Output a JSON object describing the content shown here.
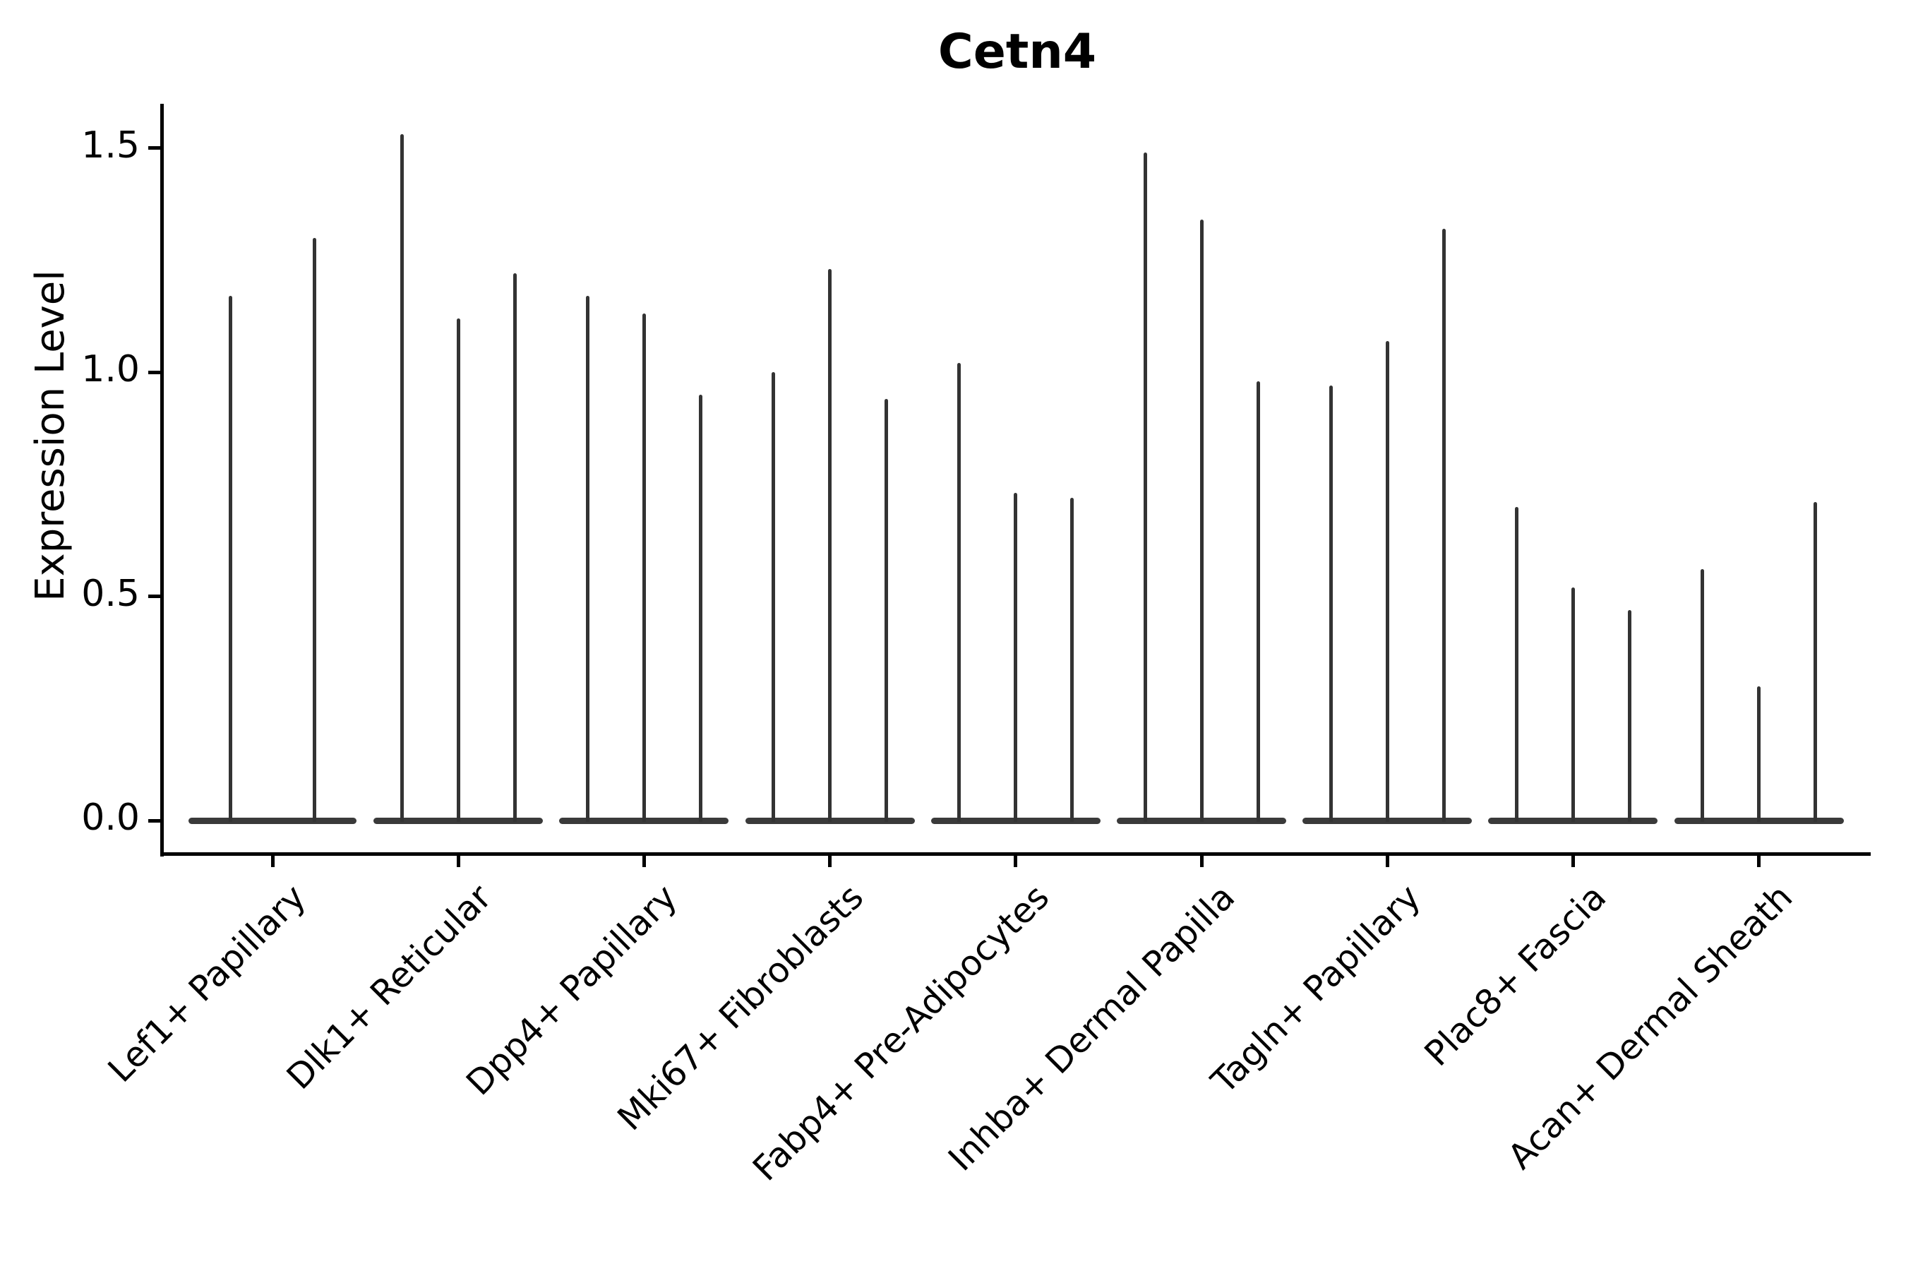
{
  "chart_data": {
    "type": "violin",
    "title": "Cetn4",
    "ylabel": "Expression Level",
    "xlabel": "",
    "ylim": [
      0,
      1.6
    ],
    "yticks": [
      0.0,
      0.5,
      1.0,
      1.5
    ],
    "ytick_labels": [
      "0.0",
      "0.5",
      "1.0",
      "1.5"
    ],
    "grid": false,
    "legend": "none",
    "categories": [
      "Lef1+ Papillary",
      "Dlk1+ Reticular",
      "Dpp4+ Papillary",
      "Mki67+ Fibroblasts",
      "Fabp4+ Pre-Adipocytes",
      "Inhba+ Dermal Papilla",
      "Tagln+ Papillary",
      "Plac8+ Fascia",
      "Acan+ Dermal Sheath"
    ],
    "groups": [
      {
        "label": "Lef1+ Papillary",
        "violin_max_values": [
          1.17,
          1.3
        ]
      },
      {
        "label": "Dlk1+ Reticular",
        "violin_max_values": [
          1.53,
          1.12,
          1.22
        ]
      },
      {
        "label": "Dpp4+ Papillary",
        "violin_max_values": [
          1.17,
          1.13,
          0.95
        ]
      },
      {
        "label": "Mki67+ Fibroblasts",
        "violin_max_values": [
          1.0,
          1.23,
          0.94
        ]
      },
      {
        "label": "Fabp4+ Pre-Adipocytes",
        "violin_max_values": [
          1.02,
          0.73,
          0.72
        ]
      },
      {
        "label": "Inhba+ Dermal Papilla",
        "violin_max_values": [
          1.49,
          1.34,
          0.98
        ]
      },
      {
        "label": "Tagln+ Papillary",
        "violin_max_values": [
          0.97,
          1.07,
          1.32
        ]
      },
      {
        "label": "Plac8+ Fascia",
        "violin_max_values": [
          0.7,
          0.52,
          0.47
        ]
      },
      {
        "label": "Acan+ Dermal Sheath",
        "violin_max_values": [
          0.56,
          0.3,
          0.71
        ]
      }
    ],
    "baseline_value": 0.0,
    "violins_per_group_note": "each violin is a flat body at 0 with a thin spike up to its max expression value",
    "colors": {
      "violin_line": "#333333",
      "violin_body": "#3a3a3a",
      "spine": "#000000",
      "text": "#000000",
      "background": "#ffffff"
    }
  }
}
